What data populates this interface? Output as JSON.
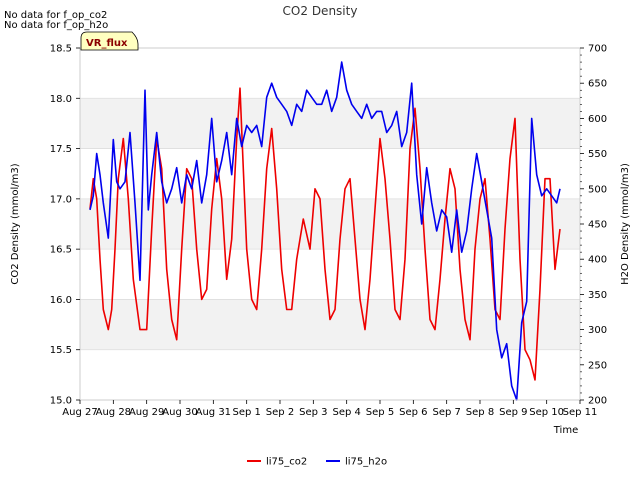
{
  "notes": [
    "No data for f_op_co2",
    "No data for f_op_h2o"
  ],
  "badge": "VR_flux",
  "chart_data": {
    "type": "line",
    "title": "CO2 Density",
    "xlabel": "Time",
    "ylabel": "CO2 Density (mmol/m3)",
    "ylabel_right": "H2O Density (mmol/m3)",
    "x_ticks": [
      "Aug 27",
      "Aug 28",
      "Aug 29",
      "Aug 30",
      "Aug 31",
      "Sep 1",
      "Sep 2",
      "Sep 3",
      "Sep 4",
      "Sep 5",
      "Sep 6",
      "Sep 7",
      "Sep 8",
      "Sep 9",
      "Sep 10",
      "Sep 11"
    ],
    "xlim": [
      0,
      15
    ],
    "ylim": [
      15.0,
      18.5
    ],
    "ylim_right": [
      200,
      700
    ],
    "y_ticks": [
      "15.0",
      "15.5",
      "16.0",
      "16.5",
      "17.0",
      "17.5",
      "18.0",
      "18.5"
    ],
    "y_ticks_right": [
      "200",
      "250",
      "300",
      "350",
      "400",
      "450",
      "500",
      "550",
      "600",
      "650",
      "700"
    ],
    "shaded_bands": [
      [
        15.5,
        16.0
      ],
      [
        16.5,
        17.0
      ],
      [
        17.5,
        18.0
      ]
    ],
    "series": [
      {
        "name": "li75_co2",
        "axis": "left",
        "color": "#ee0000",
        "x": [
          0.3,
          0.4,
          0.5,
          0.6,
          0.7,
          0.85,
          0.95,
          1.05,
          1.15,
          1.3,
          1.45,
          1.6,
          1.8,
          2.0,
          2.15,
          2.3,
          2.45,
          2.6,
          2.75,
          2.9,
          3.05,
          3.2,
          3.35,
          3.5,
          3.65,
          3.8,
          3.95,
          4.1,
          4.25,
          4.4,
          4.55,
          4.7,
          4.8,
          4.9,
          5.0,
          5.15,
          5.3,
          5.45,
          5.6,
          5.75,
          5.9,
          6.05,
          6.2,
          6.35,
          6.5,
          6.7,
          6.9,
          7.05,
          7.2,
          7.35,
          7.5,
          7.65,
          7.8,
          7.95,
          8.1,
          8.25,
          8.4,
          8.55,
          8.7,
          8.85,
          9.0,
          9.15,
          9.3,
          9.45,
          9.6,
          9.75,
          9.9,
          10.05,
          10.2,
          10.35,
          10.5,
          10.65,
          10.8,
          10.95,
          11.1,
          11.25,
          11.4,
          11.55,
          11.7,
          11.85,
          12.0,
          12.15,
          12.3,
          12.45,
          12.6,
          12.75,
          12.9,
          13.05,
          13.2,
          13.35,
          13.5,
          13.65,
          13.8,
          13.95,
          14.1,
          14.25,
          14.4
        ],
        "y": [
          16.9,
          17.2,
          17.0,
          16.4,
          15.9,
          15.7,
          15.9,
          16.5,
          17.2,
          17.6,
          17.0,
          16.2,
          15.7,
          15.7,
          16.7,
          17.6,
          17.3,
          16.3,
          15.8,
          15.6,
          16.5,
          17.3,
          17.2,
          16.5,
          16.0,
          16.1,
          16.9,
          17.4,
          17.0,
          16.2,
          16.6,
          17.6,
          18.1,
          17.3,
          16.5,
          16.0,
          15.9,
          16.5,
          17.3,
          17.7,
          17.1,
          16.3,
          15.9,
          15.9,
          16.4,
          16.8,
          16.5,
          17.1,
          17.0,
          16.3,
          15.8,
          15.9,
          16.6,
          17.1,
          17.2,
          16.6,
          16.0,
          15.7,
          16.2,
          16.9,
          17.6,
          17.2,
          16.6,
          15.9,
          15.8,
          16.4,
          17.5,
          17.9,
          17.3,
          16.5,
          15.8,
          15.7,
          16.2,
          16.8,
          17.3,
          17.1,
          16.3,
          15.8,
          15.6,
          16.5,
          17.0,
          17.2,
          16.6,
          15.9,
          15.8,
          16.7,
          17.4,
          17.8,
          16.4,
          15.5,
          15.4,
          15.2,
          16.1,
          17.2,
          17.2,
          16.3,
          16.7
        ]
      },
      {
        "name": "li75_h2o",
        "axis": "right",
        "color": "#0000ee",
        "x": [
          0.3,
          0.4,
          0.5,
          0.6,
          0.7,
          0.85,
          1.0,
          1.1,
          1.2,
          1.35,
          1.5,
          1.65,
          1.8,
          1.95,
          2.05,
          2.15,
          2.3,
          2.45,
          2.6,
          2.75,
          2.9,
          3.05,
          3.2,
          3.35,
          3.5,
          3.65,
          3.8,
          3.95,
          4.1,
          4.25,
          4.4,
          4.55,
          4.7,
          4.85,
          5.0,
          5.15,
          5.3,
          5.45,
          5.6,
          5.75,
          5.9,
          6.05,
          6.2,
          6.35,
          6.5,
          6.65,
          6.8,
          6.95,
          7.1,
          7.25,
          7.4,
          7.55,
          7.7,
          7.85,
          8.0,
          8.15,
          8.3,
          8.45,
          8.6,
          8.75,
          8.9,
          9.05,
          9.2,
          9.35,
          9.5,
          9.65,
          9.8,
          9.95,
          10.1,
          10.25,
          10.4,
          10.55,
          10.7,
          10.85,
          11.0,
          11.15,
          11.3,
          11.45,
          11.6,
          11.75,
          11.9,
          12.05,
          12.2,
          12.35,
          12.5,
          12.65,
          12.8,
          12.95,
          13.1,
          13.25,
          13.4,
          13.55,
          13.7,
          13.85,
          14.0,
          14.15,
          14.3,
          14.4
        ],
        "y": [
          470,
          490,
          550,
          520,
          480,
          430,
          570,
          510,
          500,
          510,
          580,
          480,
          370,
          640,
          470,
          520,
          580,
          510,
          480,
          500,
          530,
          480,
          520,
          500,
          540,
          480,
          520,
          600,
          510,
          540,
          580,
          520,
          600,
          560,
          590,
          580,
          590,
          560,
          630,
          650,
          630,
          620,
          610,
          590,
          620,
          610,
          640,
          630,
          620,
          620,
          640,
          610,
          630,
          680,
          640,
          620,
          610,
          600,
          620,
          600,
          610,
          610,
          580,
          590,
          610,
          560,
          580,
          650,
          520,
          450,
          530,
          480,
          440,
          470,
          460,
          410,
          470,
          410,
          440,
          500,
          550,
          510,
          470,
          430,
          300,
          260,
          280,
          220,
          200,
          310,
          340,
          600,
          520,
          490,
          500,
          490,
          480,
          500
        ]
      }
    ],
    "legend": [
      "li75_co2",
      "li75_h2o"
    ],
    "legend_position": "bottom-center",
    "grid": "horizontal"
  }
}
